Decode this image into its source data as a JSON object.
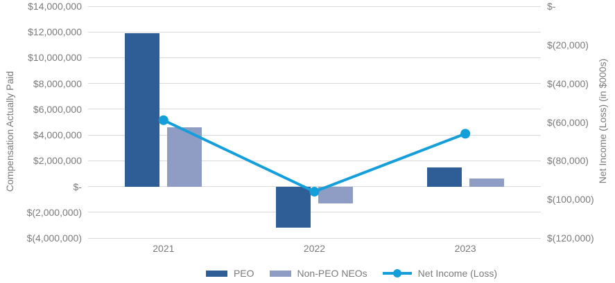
{
  "chart_data": {
    "type": "combo-bar-line",
    "title": "",
    "categories": [
      "2021",
      "2022",
      "2023"
    ],
    "series": [
      {
        "name": "PEO",
        "type": "bar",
        "axis": "left",
        "color": "#2f5e97",
        "values": [
          11900000,
          -3200000,
          1500000
        ]
      },
      {
        "name": "Non-PEO NEOs",
        "type": "bar",
        "axis": "left",
        "color": "#8f9cc4",
        "values": [
          4600000,
          -1300000,
          600000
        ]
      },
      {
        "name": "Net Income (Loss)",
        "type": "line",
        "axis": "right",
        "color": "#149fdb",
        "values": [
          -59000,
          -96000,
          -66000
        ]
      }
    ],
    "left_axis": {
      "title": "Compensation Actually Paid",
      "max": 14000000,
      "min": -4000000,
      "step": 2000000,
      "tick_labels": [
        "$14,000,000",
        "$12,000,000",
        "$10,000,000",
        "$8,000,000",
        "$6,000,000",
        "$4,000,000",
        "$2,000,000",
        "$-",
        "$(2,000,000)",
        "$(4,000,000)"
      ]
    },
    "right_axis": {
      "title": "Net Income (Loss) (in $000s)",
      "max": 0,
      "min": -120000,
      "step": -20000,
      "tick_labels": [
        "$-",
        "$(20,000)",
        "$(40,000)",
        "$(60,000)",
        "$(80,000)",
        "$(100,000)",
        "$(120,000)"
      ]
    },
    "grid": true,
    "legend_position": "bottom",
    "colors": {
      "grid": "#d9d9d9",
      "text": "#7a7a7a",
      "background": "#ffffff"
    }
  }
}
